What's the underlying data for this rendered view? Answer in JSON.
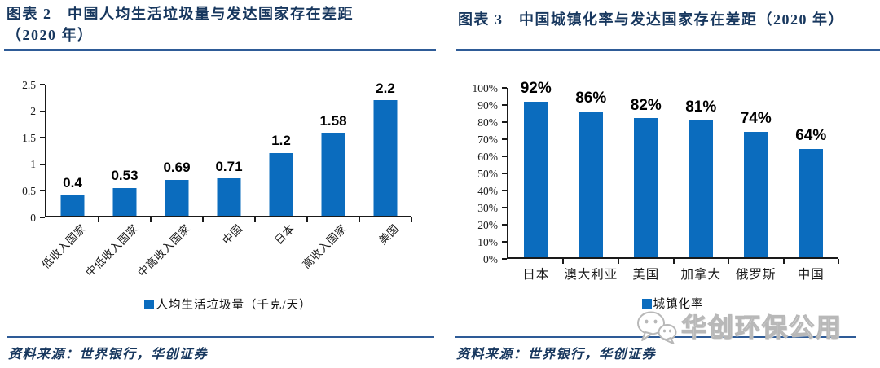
{
  "colors": {
    "bar": "#0B6CBE",
    "title": "#17375E",
    "rule": "#2E5B97",
    "source": "#17375E",
    "axis": "#1a1a1a",
    "watermark_outline": "#b8b8b8"
  },
  "panels": [
    {
      "figure_label": "图表 2",
      "title_lines": [
        "图表 2　中国人均生活垃圾量与发达国家存在差距",
        "（2020 年）"
      ],
      "legend": "人均生活垃圾量（千克/天）",
      "source": "资料来源：世界银行，华创证券"
    },
    {
      "figure_label": "图表 3",
      "title_lines": [
        "图表 3　中国城镇化率与发达国家存在差距（2020 年）"
      ],
      "legend": "城镇化率",
      "source": "资料来源：世界银行，华创证券"
    }
  ],
  "watermark": {
    "icon": "wechat-chat-bubbles-icon",
    "text": "华创环保公用"
  },
  "chart_data": [
    {
      "type": "bar",
      "title": "中国人均生活垃圾量与发达国家存在差距（2020 年）",
      "categories": [
        "低收入国家",
        "中低收入国家",
        "中高收入国家",
        "中国",
        "日本",
        "高收入国家",
        "美国"
      ],
      "values": [
        0.4,
        0.53,
        0.69,
        0.71,
        1.2,
        1.58,
        2.2
      ],
      "value_labels": [
        "0.4",
        "0.53",
        "0.69",
        "0.71",
        "1.2",
        "1.58",
        "2.2"
      ],
      "legend": [
        "人均生活垃圾量（千克/天）"
      ],
      "legend_position": "bottom",
      "xlabel": "",
      "ylabel": "",
      "ylim": [
        0,
        2.5
      ],
      "yticks": [
        0,
        0.5,
        1,
        1.5,
        2,
        2.5
      ],
      "ytick_labels": [
        "0",
        "0.5",
        "1",
        "1.5",
        "2",
        "2.5"
      ],
      "grid": false,
      "rotated_xlabels": true
    },
    {
      "type": "bar",
      "title": "中国城镇化率与发达国家存在差距（2020 年）",
      "categories": [
        "日本",
        "澳大利亚",
        "美国",
        "加拿大",
        "俄罗斯",
        "中国"
      ],
      "values": [
        92,
        86,
        82,
        81,
        74,
        64
      ],
      "value_labels": [
        "92%",
        "86%",
        "82%",
        "81%",
        "74%",
        "64%"
      ],
      "legend": [
        "城镇化率"
      ],
      "legend_position": "bottom",
      "xlabel": "",
      "ylabel": "",
      "ylim": [
        0,
        100
      ],
      "yticks": [
        0,
        10,
        20,
        30,
        40,
        50,
        60,
        70,
        80,
        90,
        100
      ],
      "ytick_labels": [
        "0%",
        "10%",
        "20%",
        "30%",
        "40%",
        "50%",
        "60%",
        "70%",
        "80%",
        "90%",
        "100%"
      ],
      "grid": false,
      "rotated_xlabels": false
    }
  ]
}
